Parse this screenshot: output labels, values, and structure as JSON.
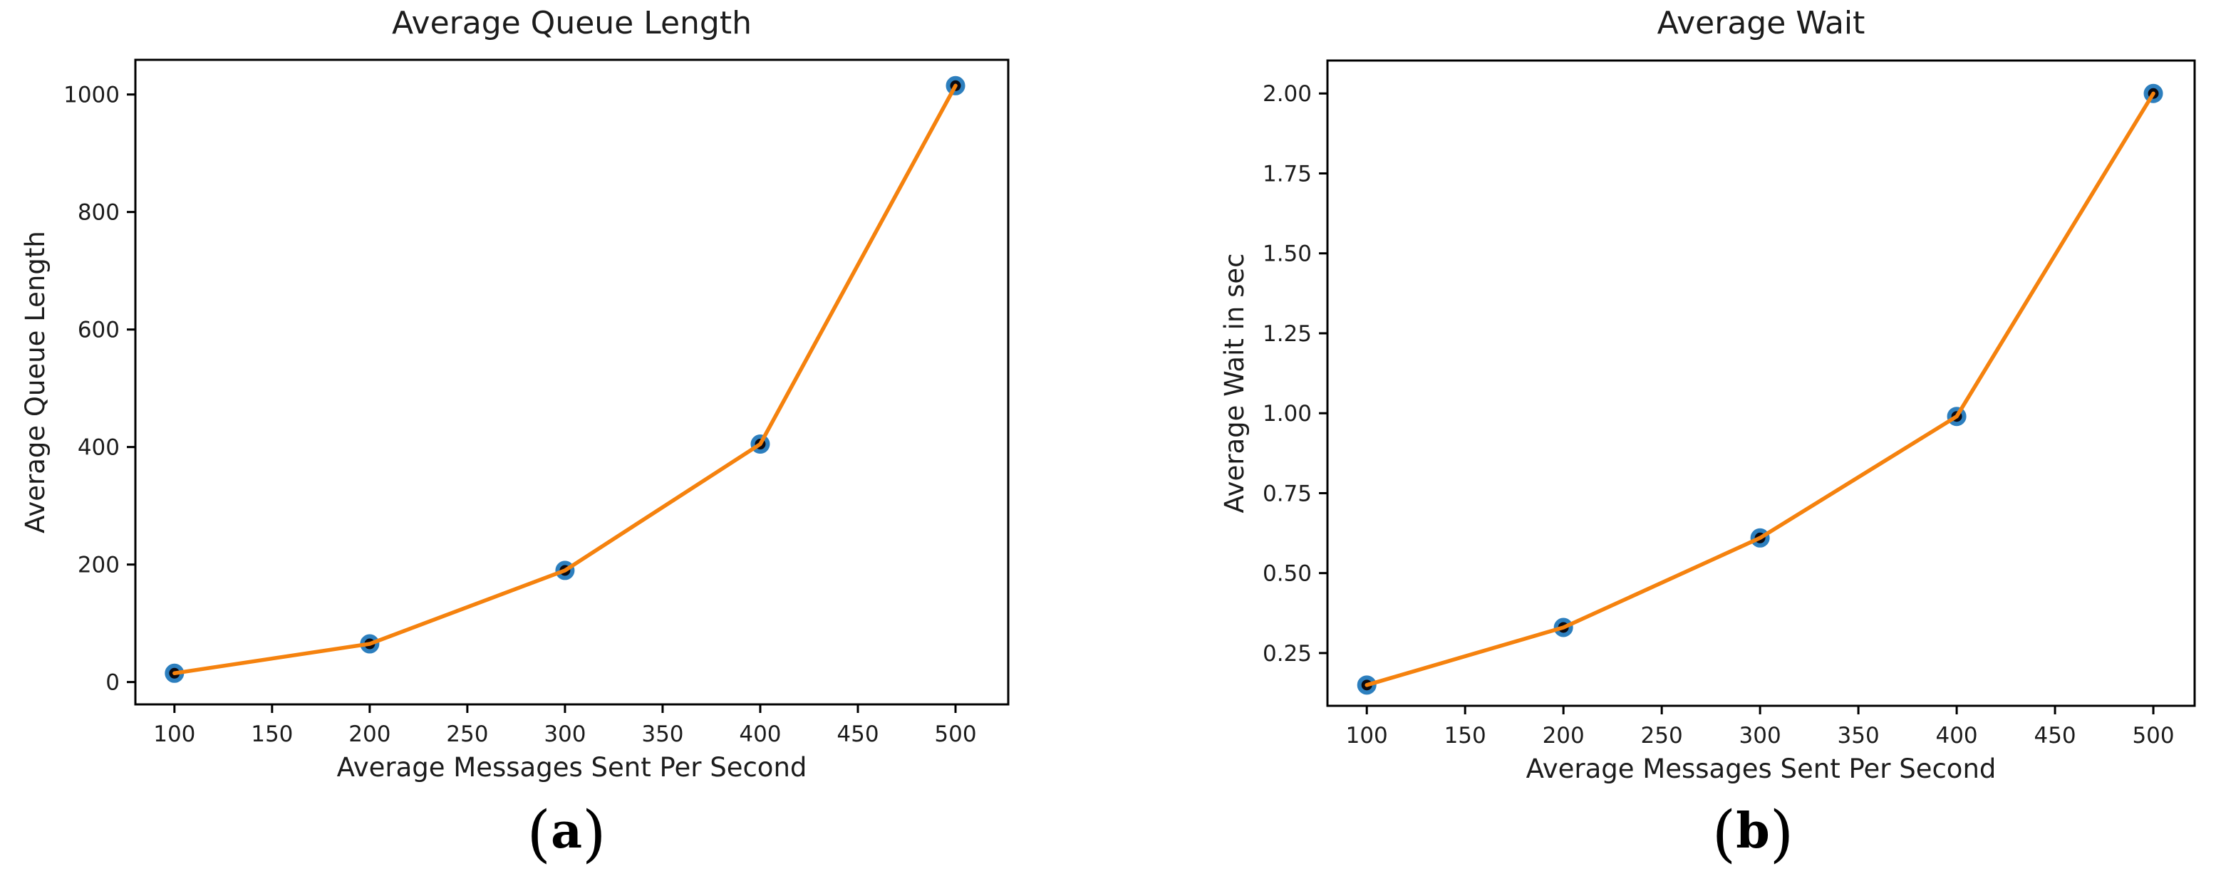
{
  "chart_data": [
    {
      "type": "line",
      "title": "Average Queue Length",
      "xlabel": "Average Messages Sent Per Second",
      "ylabel": "Average Queue Length",
      "caption": {
        "open": "(",
        "letter": "a",
        "close": ")"
      },
      "x": [
        100,
        200,
        300,
        400,
        500
      ],
      "y": [
        15,
        65,
        190,
        405,
        1015
      ],
      "xticks": {
        "values": [
          100,
          150,
          200,
          250,
          300,
          350,
          400,
          450,
          500
        ],
        "labels": [
          "100",
          "150",
          "200",
          "250",
          "300",
          "350",
          "400",
          "450",
          "500"
        ]
      },
      "yticks": {
        "values": [
          0,
          200,
          400,
          600,
          800,
          1000
        ],
        "labels": [
          "0",
          "200",
          "400",
          "600",
          "800",
          "1000"
        ]
      },
      "xlim": [
        80,
        527
      ],
      "ylim": [
        -38,
        1059
      ],
      "grid": false,
      "legend": null,
      "line_color": "#f5820e",
      "marker_face": "#0a0a12",
      "marker_edge": "#2d7fbe",
      "spine_color": "#000000",
      "text_color": "#1c1c1c"
    },
    {
      "type": "line",
      "title": "Average Wait",
      "xlabel": "Average Messages Sent Per Second",
      "ylabel": "Average Wait in sec",
      "caption": {
        "open": "(",
        "letter": "b",
        "close": ")"
      },
      "x": [
        100,
        200,
        300,
        400,
        500
      ],
      "y": [
        0.15,
        0.33,
        0.61,
        0.99,
        2.0
      ],
      "xticks": {
        "values": [
          100,
          150,
          200,
          250,
          300,
          350,
          400,
          450,
          500
        ],
        "labels": [
          "100",
          "150",
          "200",
          "250",
          "300",
          "350",
          "400",
          "450",
          "500"
        ]
      },
      "yticks": {
        "values": [
          0.25,
          0.5,
          0.75,
          1.0,
          1.25,
          1.5,
          1.75,
          2.0
        ],
        "labels": [
          "0.25",
          "0.50",
          "0.75",
          "1.00",
          "1.25",
          "1.50",
          "1.75",
          "2.00"
        ]
      },
      "xlim": [
        80,
        521
      ],
      "ylim": [
        0.085,
        2.103
      ],
      "grid": false,
      "legend": null,
      "line_color": "#f5820e",
      "marker_face": "#0a0a12",
      "marker_edge": "#2d7fbe",
      "spine_color": "#000000",
      "text_color": "#1c1c1c"
    }
  ]
}
